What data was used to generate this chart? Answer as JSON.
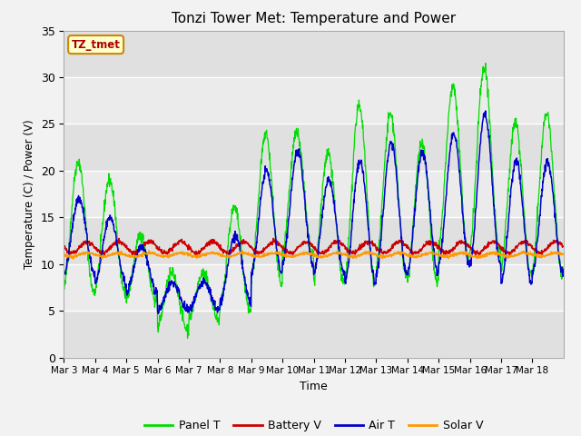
{
  "title": "Tonzi Tower Met: Temperature and Power",
  "xlabel": "Time",
  "ylabel": "Temperature (C) / Power (V)",
  "annotation": "TZ_tmet",
  "ylim": [
    0,
    35
  ],
  "tick_labels": [
    "Mar 3",
    "Mar 4",
    "Mar 5",
    "Mar 6",
    "Mar 7",
    "Mar 8",
    "Mar 9",
    "Mar 10",
    "Mar 11",
    "Mar 12",
    "Mar 13",
    "Mar 14",
    "Mar 15",
    "Mar 16",
    "Mar 17",
    "Mar 18"
  ],
  "colors": {
    "panel_t": "#00dd00",
    "battery_v": "#cc0000",
    "air_t": "#0000cc",
    "solar_v": "#ff9900"
  },
  "plot_bg": "#e8e8e8",
  "fig_bg": "#f2f2f2",
  "legend_labels": [
    "Panel T",
    "Battery V",
    "Air T",
    "Solar V"
  ],
  "title_fontsize": 11,
  "panel_peaks": [
    21,
    19,
    13,
    9,
    9,
    16,
    24,
    24,
    22,
    27,
    26,
    23,
    29,
    31,
    25,
    26
  ],
  "panel_mins": [
    7,
    7,
    6,
    3,
    4,
    5,
    8,
    11,
    8,
    8,
    9,
    8,
    11,
    11,
    9,
    9
  ],
  "air_peaks": [
    17,
    15,
    12,
    8,
    8,
    13,
    20,
    22,
    19,
    21,
    23,
    22,
    24,
    26,
    21,
    21
  ],
  "air_mins": [
    9,
    8,
    7,
    5,
    5,
    6,
    9,
    10,
    9,
    8,
    9,
    9,
    10,
    10,
    8,
    9
  ],
  "battery_base": 11.8,
  "battery_amp": 0.6,
  "solar_base": 11.0,
  "solar_amp": 0.2,
  "n_days": 16,
  "pts_per_day": 96
}
